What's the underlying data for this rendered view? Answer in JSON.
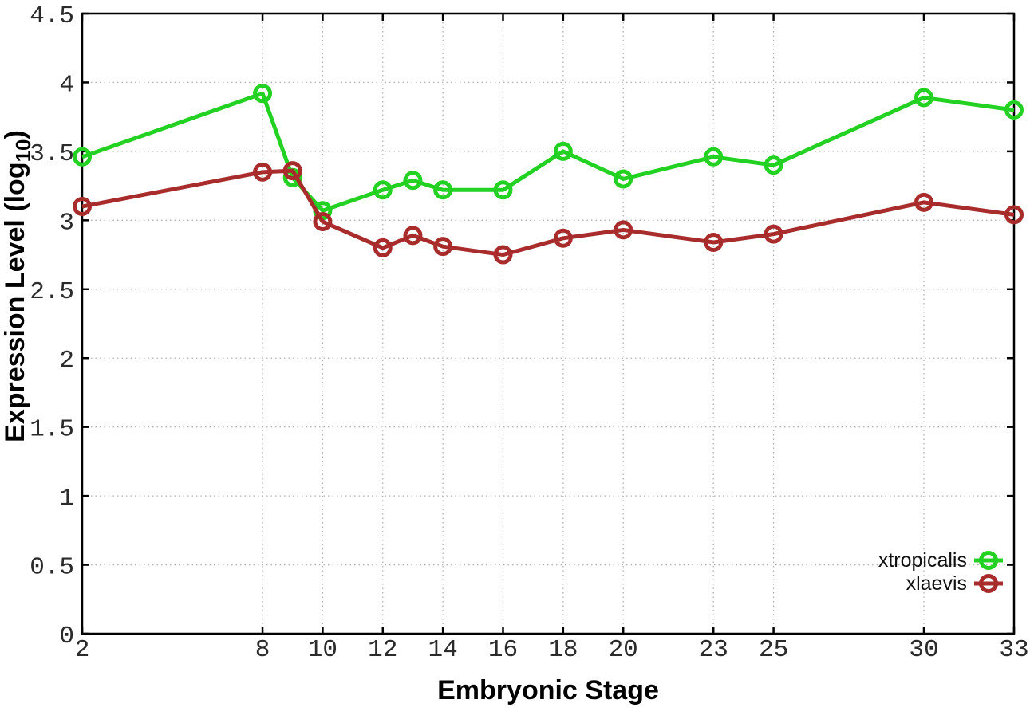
{
  "chart_data": {
    "type": "line",
    "title": "",
    "xlabel": "Embryonic Stage",
    "ylabel": {
      "text": "Expression Level (log",
      "sub": "10",
      "suffix": ")"
    },
    "x": [
      2,
      8,
      9,
      10,
      12,
      13,
      14,
      16,
      18,
      20,
      23,
      25,
      30,
      33
    ],
    "series": [
      {
        "name": "xtropicalis",
        "color": "#23d123",
        "values": [
          3.46,
          3.92,
          3.31,
          3.07,
          3.22,
          3.29,
          3.22,
          3.22,
          3.5,
          3.3,
          3.46,
          3.4,
          3.89,
          3.8
        ]
      },
      {
        "name": "xlaevis",
        "color": "#a82c2c",
        "values": [
          3.1,
          3.35,
          3.36,
          2.99,
          2.8,
          2.89,
          2.81,
          2.75,
          2.87,
          2.93,
          2.84,
          2.9,
          3.13,
          3.04
        ]
      }
    ],
    "xticks": [
      2,
      8,
      10,
      12,
      14,
      16,
      18,
      20,
      23,
      25,
      30,
      33
    ],
    "yticks": [
      0,
      0.5,
      1,
      1.5,
      2,
      2.5,
      3,
      3.5,
      4,
      4.5
    ],
    "xlim": [
      2,
      33
    ],
    "ylim": [
      0,
      4.5
    ],
    "grid": true,
    "marker": "open-circle",
    "legend_position": "bottom-right-inside",
    "axis_color": "#000000",
    "grid_color": "#b3b3b3",
    "background": "#ffffff"
  }
}
